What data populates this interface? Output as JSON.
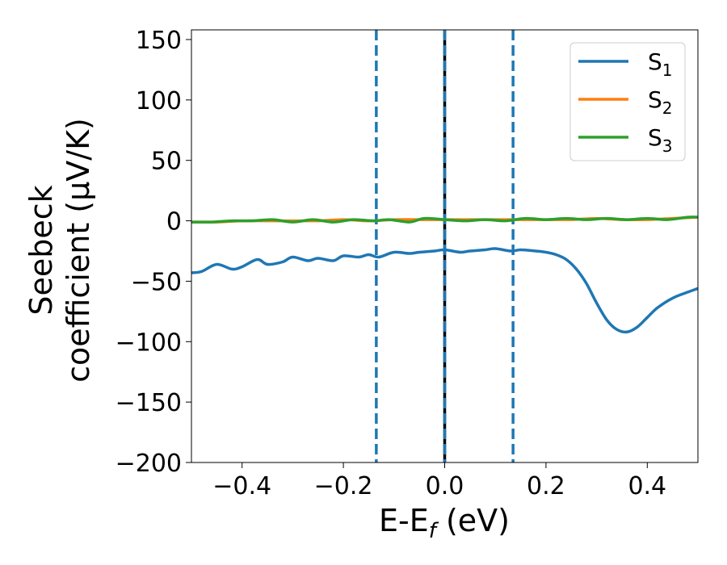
{
  "chart_data": {
    "type": "line",
    "title": "",
    "xlabel_main": "E-E",
    "xlabel_sub": "f",
    "xlabel_unit": " (eV)",
    "ylabel_line1": "Seebeck",
    "ylabel_line2": "coefficient  (μV/K)",
    "xlim": [
      -0.5,
      0.5
    ],
    "ylim": [
      -200,
      158
    ],
    "xticks": [
      -0.4,
      -0.2,
      0.0,
      0.2,
      0.4
    ],
    "xtick_labels": [
      "−0.4",
      "−0.2",
      "0.0",
      "0.2",
      "0.4"
    ],
    "yticks": [
      150,
      100,
      50,
      0,
      -50,
      -100,
      -150,
      -200
    ],
    "ytick_labels": [
      "150",
      "100",
      "50",
      "0",
      "−50",
      "−100",
      "−150",
      "−200"
    ],
    "grid": false,
    "legend_position": "top-right",
    "vlines": [
      {
        "x": -0.135,
        "color": "#1f77b4",
        "style": "dashed"
      },
      {
        "x": 0.0,
        "color": "#000000",
        "style": "solid"
      },
      {
        "x": 0.0,
        "color": "#1f77b4",
        "style": "dashed"
      },
      {
        "x": 0.135,
        "color": "#1f77b4",
        "style": "dashed"
      }
    ],
    "series": [
      {
        "name": "S",
        "sub": "1",
        "color": "#1f77b4",
        "x": [
          -0.5,
          -0.48,
          -0.45,
          -0.42,
          -0.4,
          -0.37,
          -0.35,
          -0.32,
          -0.3,
          -0.27,
          -0.25,
          -0.22,
          -0.2,
          -0.17,
          -0.15,
          -0.13,
          -0.1,
          -0.07,
          -0.05,
          -0.02,
          0.0,
          0.03,
          0.05,
          0.08,
          0.1,
          0.13,
          0.15,
          0.18,
          0.2,
          0.22,
          0.24,
          0.26,
          0.28,
          0.3,
          0.32,
          0.34,
          0.36,
          0.38,
          0.4,
          0.42,
          0.45,
          0.48,
          0.5
        ],
        "values": [
          -43,
          -42,
          -36,
          -40,
          -38,
          -32,
          -36,
          -34,
          -30,
          -33,
          -31,
          -33,
          -29,
          -30,
          -28,
          -30,
          -26,
          -27,
          -26,
          -25,
          -24,
          -26,
          -25,
          -24,
          -23,
          -25,
          -24,
          -25,
          -26,
          -28,
          -32,
          -40,
          -52,
          -68,
          -82,
          -90,
          -92,
          -88,
          -80,
          -72,
          -64,
          -59,
          -56
        ]
      },
      {
        "name": "S",
        "sub": "2",
        "color": "#ff7f0e",
        "x": [
          -0.5,
          -0.45,
          -0.4,
          -0.35,
          -0.3,
          -0.25,
          -0.2,
          -0.15,
          -0.1,
          -0.05,
          0.0,
          0.05,
          0.1,
          0.15,
          0.2,
          0.25,
          0.3,
          0.35,
          0.4,
          0.45,
          0.5
        ],
        "values": [
          -1,
          -1,
          0,
          0,
          0,
          0,
          1,
          0,
          1,
          1,
          1,
          1,
          1,
          1,
          1,
          1,
          2,
          1,
          1,
          2,
          3
        ]
      },
      {
        "name": "S",
        "sub": "3",
        "color": "#2ca02c",
        "x": [
          -0.5,
          -0.46,
          -0.42,
          -0.38,
          -0.34,
          -0.3,
          -0.26,
          -0.22,
          -0.18,
          -0.14,
          -0.11,
          -0.07,
          -0.04,
          0.0,
          0.04,
          0.08,
          0.12,
          0.16,
          0.2,
          0.24,
          0.28,
          0.32,
          0.36,
          0.4,
          0.44,
          0.48,
          0.5
        ],
        "values": [
          -1,
          -1,
          0,
          0,
          1,
          -1,
          1,
          -1,
          1,
          0,
          1,
          -1,
          2,
          1,
          0,
          1,
          0,
          2,
          1,
          2,
          1,
          2,
          1,
          2,
          1,
          3,
          3
        ]
      }
    ]
  }
}
